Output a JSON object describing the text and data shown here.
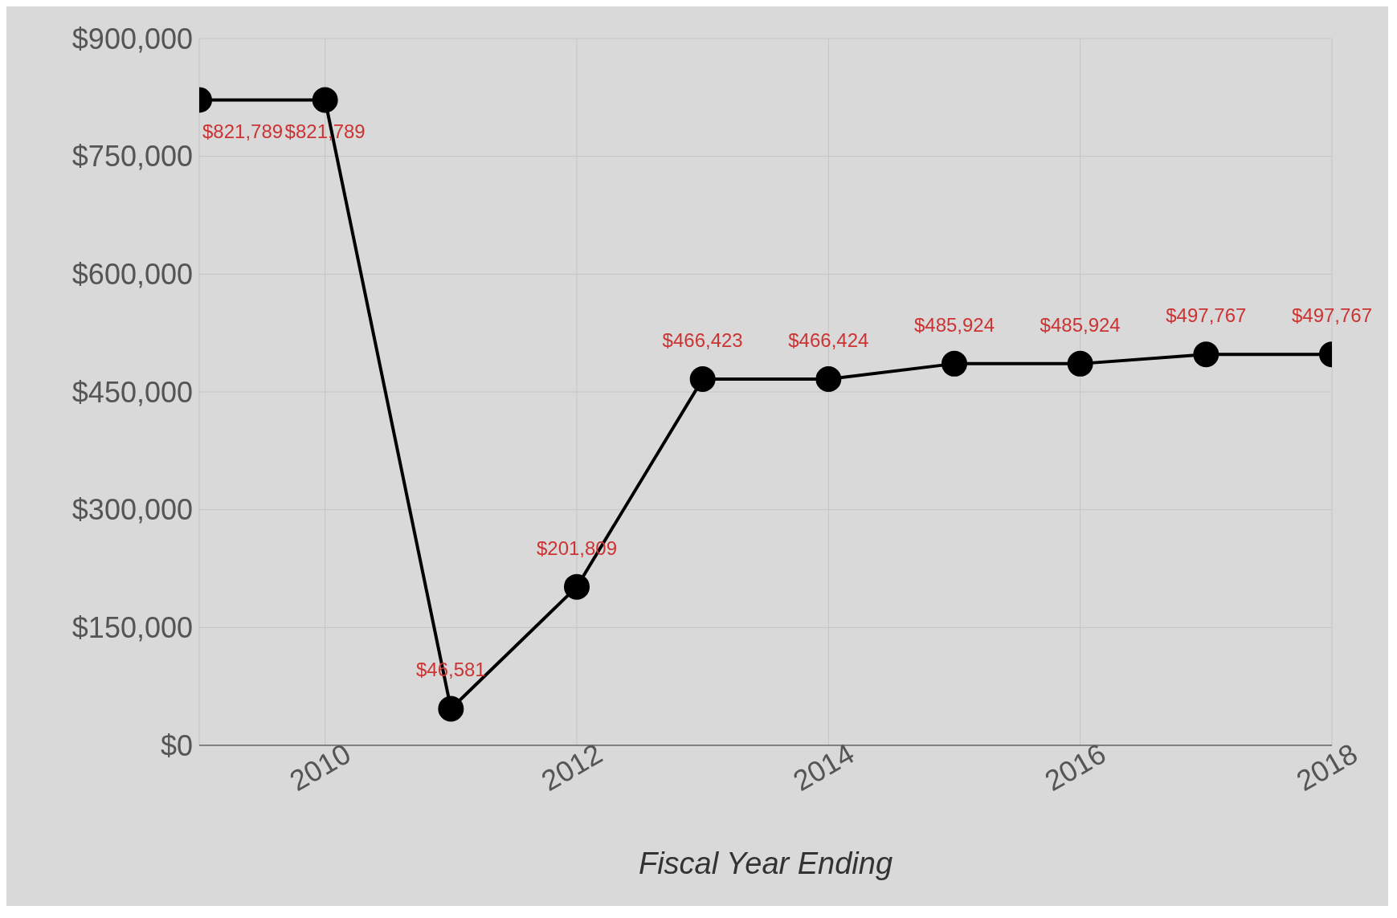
{
  "chart_data": {
    "type": "line",
    "xlabel": "Fiscal Year Ending",
    "x": [
      2009,
      2010,
      2011,
      2012,
      2013,
      2014,
      2015,
      2016,
      2017,
      2018
    ],
    "series": [
      {
        "color": "#000000",
        "values": [
          821789,
          821789,
          46581,
          201809,
          466423,
          466424,
          485924,
          485924,
          497767,
          497767
        ],
        "value_labels": [
          "$821,789",
          "$821,789",
          "$46,581",
          "$201,809",
          "$466,423",
          "$466,424",
          "$485,924",
          "$485,924",
          "$497,767",
          "$497,767"
        ]
      }
    ],
    "xlim": [
      2009,
      2018
    ],
    "xticks": [
      2010,
      2012,
      2014,
      2016,
      2018
    ],
    "ylim": [
      0,
      900000
    ],
    "yticks": [
      {
        "value": 0,
        "label": "$0"
      },
      {
        "value": 150000,
        "label": "$150,000"
      },
      {
        "value": 300000,
        "label": "$300,000"
      },
      {
        "value": 450000,
        "label": "$450,000"
      },
      {
        "value": 600000,
        "label": "$600,000"
      },
      {
        "value": 750000,
        "label": "$750,000"
      },
      {
        "value": 900000,
        "label": "$900,000"
      }
    ],
    "grid": true,
    "marker": "circle",
    "line_style": "solid"
  }
}
